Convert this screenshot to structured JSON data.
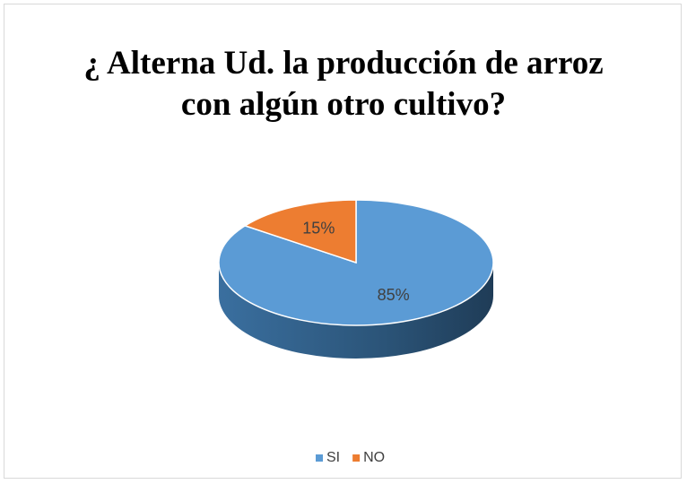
{
  "chart_data": {
    "type": "pie",
    "title": "¿ Alterna Ud. la producción de arroz con algún otro cultivo?",
    "categories": [
      "SI",
      "NO"
    ],
    "values": [
      85,
      15
    ],
    "value_labels": [
      "85%",
      "15%"
    ],
    "colors": [
      "#5b9bd5",
      "#ed7d31"
    ],
    "legend": "bottom"
  }
}
